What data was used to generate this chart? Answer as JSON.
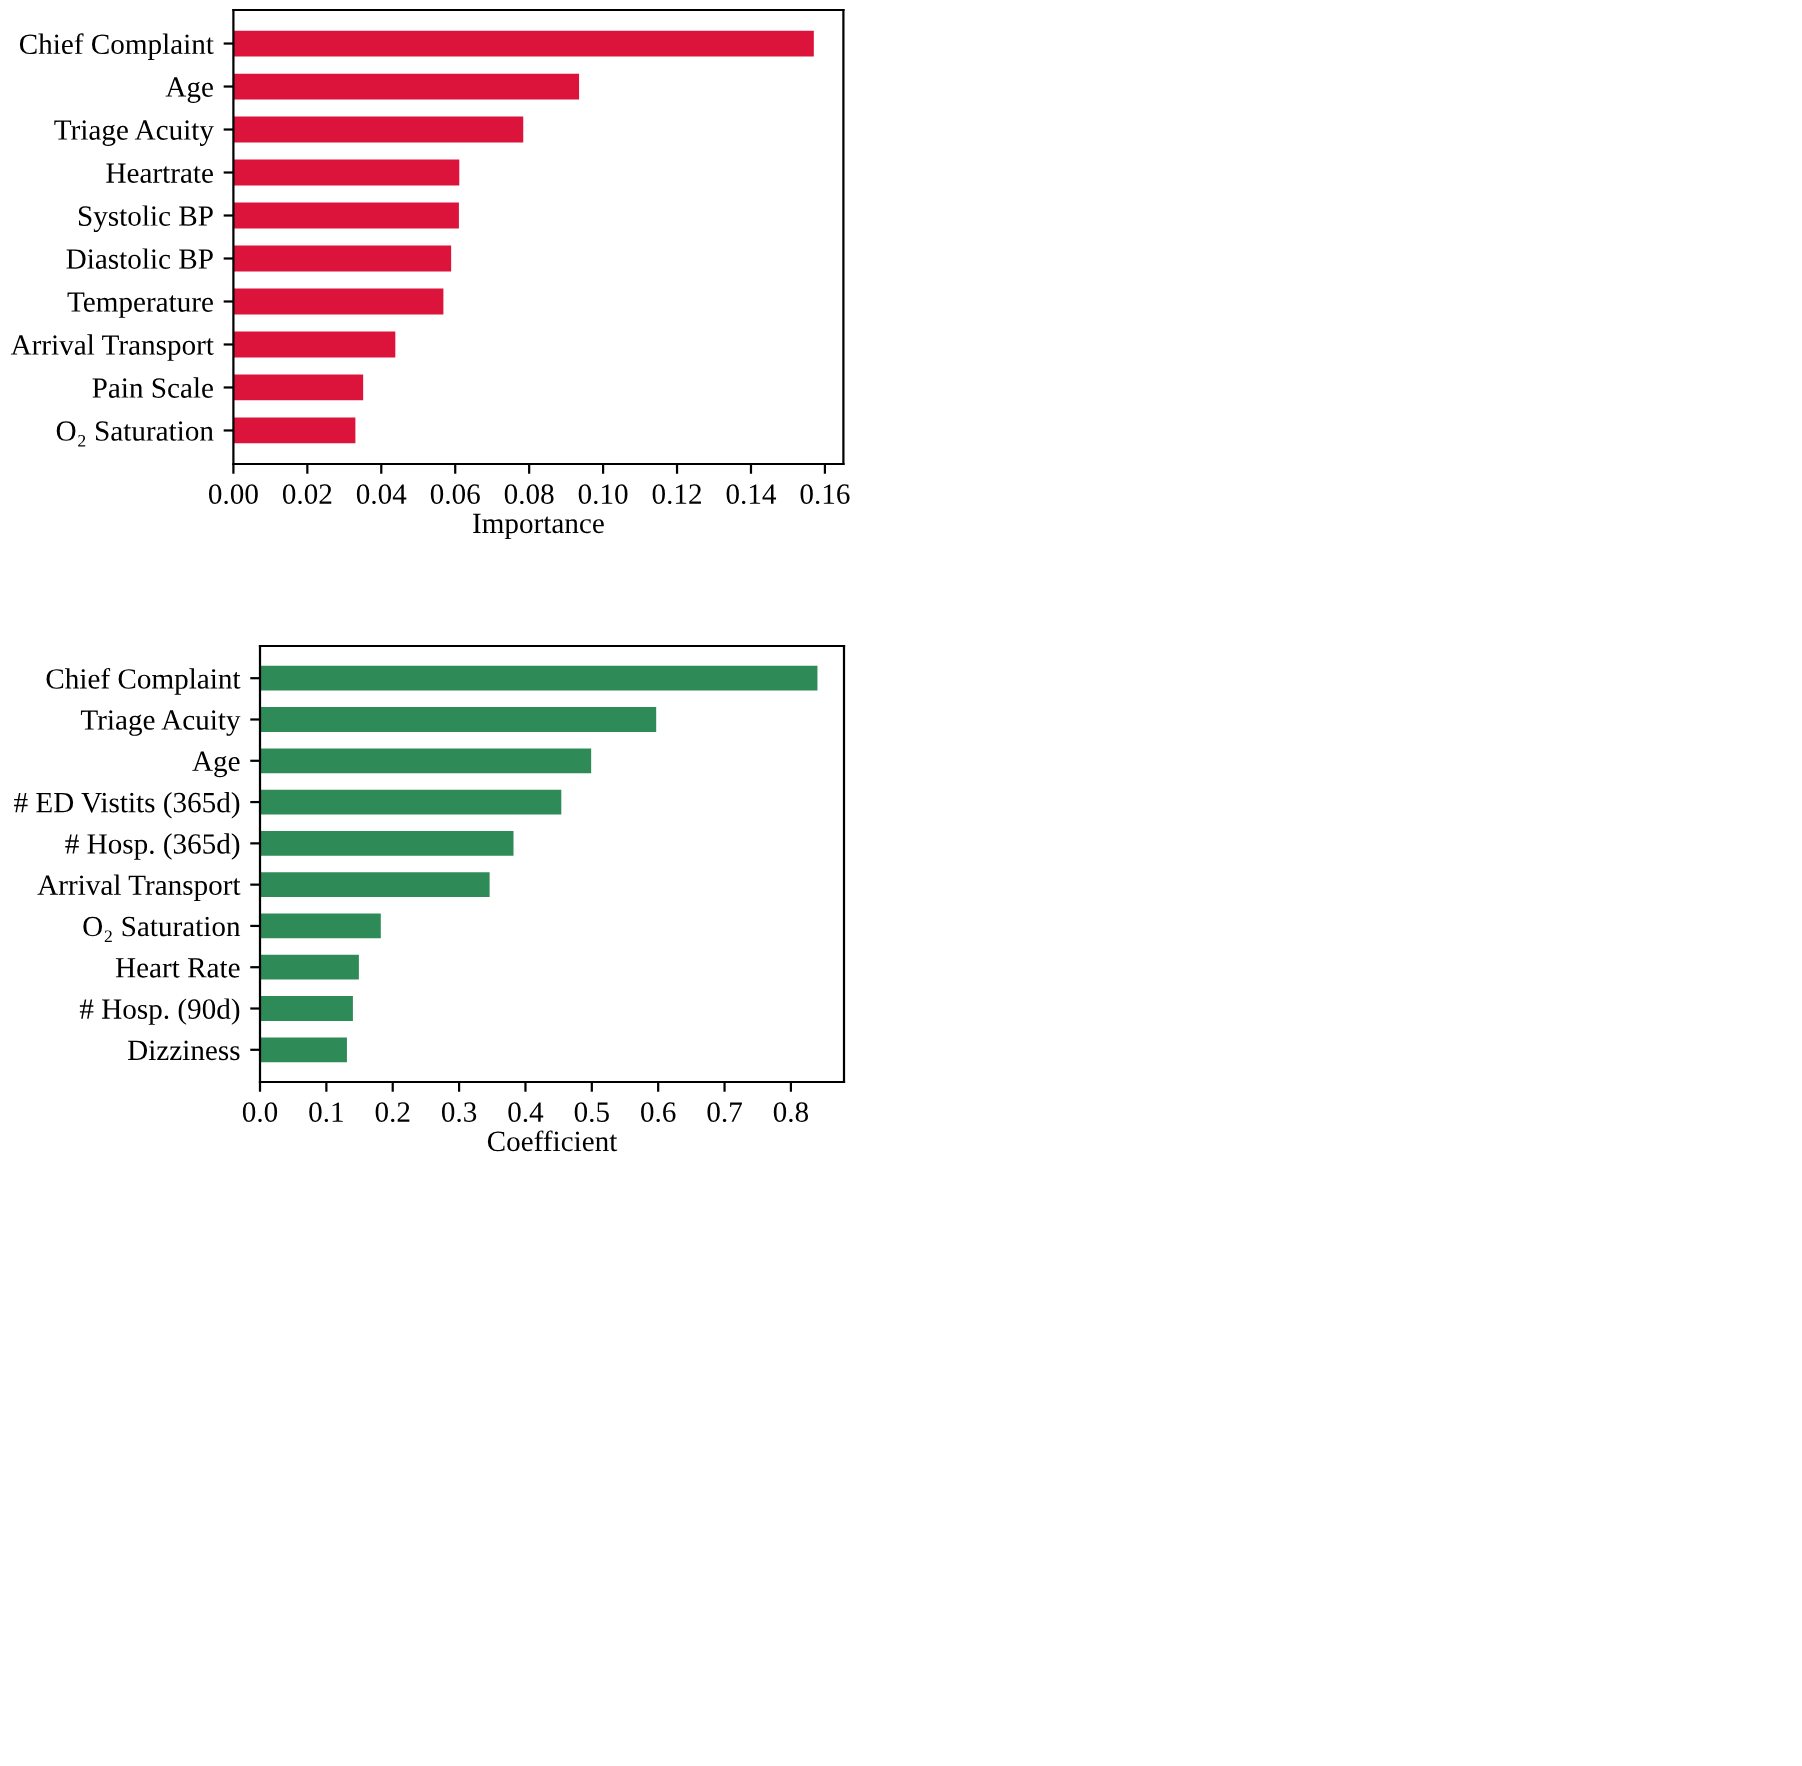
{
  "chart_data": [
    {
      "type": "bar",
      "orientation": "horizontal",
      "xlabel": "Importance",
      "categories": [
        "Chief Complaint",
        "Age",
        "Triage Acuity",
        "Heartrate",
        "Systolic BP",
        "Diastolic BP",
        "Temperature",
        "Arrival Transport",
        "Pain Scale",
        "O₂ Saturation"
      ],
      "series": [
        {
          "color": "#dc143c",
          "values": [
            0.157,
            0.0935,
            0.0784,
            0.0611,
            0.061,
            0.0589,
            0.0568,
            0.0438,
            0.0351,
            0.033
          ]
        }
      ],
      "xlim": [
        0,
        0.165
      ],
      "xticks": [
        {
          "value": 0,
          "label": "0.00"
        },
        {
          "value": 0.02,
          "label": "0.02"
        },
        {
          "value": 0.04,
          "label": "0.04"
        },
        {
          "value": 0.06,
          "label": "0.06"
        },
        {
          "value": 0.08,
          "label": "0.08"
        },
        {
          "value": 0.1,
          "label": "0.10"
        },
        {
          "value": 0.12,
          "label": "0.12"
        },
        {
          "value": 0.14,
          "label": "0.14"
        },
        {
          "value": 0.16,
          "label": "0.16"
        }
      ],
      "grid": false,
      "legend": false
    },
    {
      "type": "bar",
      "orientation": "horizontal",
      "xlabel": "Coefficient",
      "categories": [
        "Chief Complaint",
        "Triage Acuity",
        "Age",
        "# ED Vistits (365d)",
        "# Hosp. (365d)",
        "Arrival Transport",
        "O₂ Saturation",
        "Heart Rate",
        "# Hosp. (90d)",
        "Dizziness"
      ],
      "series": [
        {
          "color": "#2e8b57",
          "values": [
            0.84,
            0.597,
            0.499,
            0.454,
            0.382,
            0.346,
            0.182,
            0.149,
            0.14,
            0.131
          ]
        }
      ],
      "xlim": [
        0,
        0.88
      ],
      "xticks": [
        {
          "value": 0,
          "label": "0.0"
        },
        {
          "value": 0.1,
          "label": "0.1"
        },
        {
          "value": 0.2,
          "label": "0.2"
        },
        {
          "value": 0.3,
          "label": "0.3"
        },
        {
          "value": 0.4,
          "label": "0.4"
        },
        {
          "value": 0.5,
          "label": "0.5"
        },
        {
          "value": 0.6,
          "label": "0.6"
        },
        {
          "value": 0.7,
          "label": "0.7"
        },
        {
          "value": 0.8,
          "label": "0.8"
        }
      ],
      "grid": false,
      "legend": false
    }
  ]
}
